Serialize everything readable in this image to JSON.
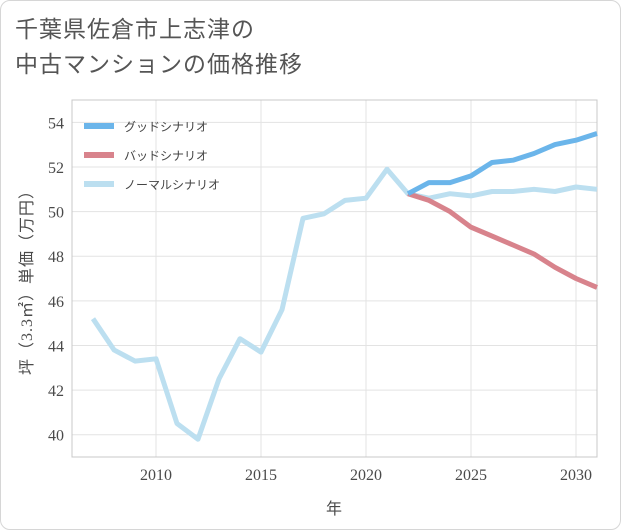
{
  "title": {
    "line1": "千葉県佐倉市上志津の",
    "line2": "中古マンションの価格推移"
  },
  "chart_data": {
    "type": "line",
    "xlabel": "年",
    "ylabel": "坪（3.3㎡）単価（万円）",
    "xlim": [
      2006,
      2031
    ],
    "ylim": [
      39,
      55
    ],
    "xticks": [
      2010,
      2015,
      2020,
      2025,
      2030
    ],
    "yticks": [
      40,
      42,
      44,
      46,
      48,
      50,
      52,
      54
    ],
    "grid": true,
    "legend_position": "top-left",
    "series": [
      {
        "name": "グッドシナリオ",
        "color": "#6bb5ea",
        "x": [
          2022,
          2023,
          2024,
          2025,
          2026,
          2027,
          2028,
          2029,
          2030,
          2031
        ],
        "values": [
          50.8,
          51.3,
          51.3,
          51.6,
          52.2,
          52.3,
          52.6,
          53.0,
          53.2,
          53.5
        ]
      },
      {
        "name": "バッドシナリオ",
        "color": "#d8838c",
        "x": [
          2022,
          2023,
          2024,
          2025,
          2026,
          2027,
          2028,
          2029,
          2030,
          2031
        ],
        "values": [
          50.8,
          50.5,
          50.0,
          49.3,
          48.9,
          48.5,
          48.1,
          47.5,
          47.0,
          46.6
        ]
      },
      {
        "name": "ノーマルシナリオ",
        "color": "#bcdff0",
        "x": [
          2007,
          2008,
          2009,
          2010,
          2011,
          2012,
          2013,
          2014,
          2015,
          2016,
          2017,
          2018,
          2019,
          2020,
          2021,
          2022,
          2023,
          2024,
          2025,
          2026,
          2027,
          2028,
          2029,
          2030,
          2031
        ],
        "values": [
          45.2,
          43.8,
          43.3,
          43.4,
          40.5,
          39.8,
          42.5,
          44.3,
          43.7,
          45.6,
          49.7,
          49.9,
          50.5,
          50.6,
          51.9,
          50.8,
          50.6,
          50.8,
          50.7,
          50.9,
          50.9,
          51.0,
          50.9,
          51.1,
          51.0
        ]
      }
    ]
  }
}
